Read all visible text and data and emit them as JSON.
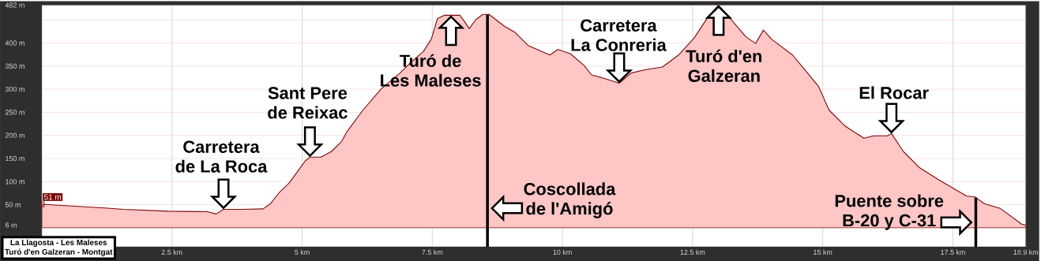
{
  "chart_data": {
    "type": "area",
    "title": "La Llagosta - Les Maleses",
    "subtitle": "Turó d'en Galzeran - Montgat",
    "x": [
      0,
      1.21,
      1.57,
      2.43,
      3.18,
      3.35,
      3.49,
      3.85,
      4.25,
      4.39,
      4.55,
      4.75,
      4.9,
      5.06,
      5.15,
      5.36,
      5.56,
      5.76,
      5.86,
      6.17,
      6.52,
      6.88,
      7.08,
      7.33,
      7.48,
      7.6,
      7.73,
      8.03,
      8.11,
      8.21,
      8.33,
      8.47,
      8.59,
      8.89,
      9.09,
      9.35,
      9.76,
      9.91,
      10.15,
      10.41,
      10.56,
      10.82,
      11.09,
      11.32,
      11.62,
      11.92,
      12.23,
      12.53,
      12.8,
      13.0,
      13.26,
      13.52,
      13.71,
      13.86,
      14.02,
      14.42,
      14.62,
      14.92,
      15.12,
      15.42,
      15.79,
      15.98,
      16.24,
      16.32,
      16.55,
      16.85,
      17.24,
      17.76,
      17.92,
      18.11,
      18.41,
      18.82,
      18.9
    ],
    "values": [
      51,
      43,
      40,
      36,
      35,
      30,
      40,
      40,
      41,
      52,
      75,
      97,
      120,
      145,
      153,
      153,
      165,
      187,
      208,
      255,
      301,
      335,
      357,
      382,
      408,
      453,
      460,
      460,
      448,
      431,
      450,
      462,
      462,
      436,
      423,
      394,
      374,
      386,
      377,
      352,
      331,
      323,
      313,
      335,
      343,
      348,
      374,
      411,
      457,
      482,
      448,
      414,
      399,
      428,
      408,
      374,
      347,
      306,
      255,
      221,
      194,
      199,
      199,
      204,
      165,
      131,
      103,
      69,
      67,
      52,
      42,
      8,
      6
    ],
    "color": "#7b0a0a",
    "xlim": [
      0,
      18.9
    ],
    "ylim": [
      -41,
      482
    ],
    "xticks": [
      {
        "value": 2.5,
        "label": "2.5 km"
      },
      {
        "value": 5,
        "label": "5 km"
      },
      {
        "value": 7.5,
        "label": "7.5 km"
      },
      {
        "value": 10,
        "label": "10 km"
      },
      {
        "value": 12.5,
        "label": "12.5 km"
      },
      {
        "value": 15,
        "label": "15 km"
      },
      {
        "value": 17.5,
        "label": "17.5 km"
      },
      {
        "value": 18.9,
        "label": "18.9 km"
      }
    ],
    "yticks": [
      {
        "value": 6,
        "label": "6 m"
      },
      {
        "value": 50,
        "label": "50 m"
      },
      {
        "value": 100,
        "label": "100 m"
      },
      {
        "value": 150,
        "label": "150 m"
      },
      {
        "value": 200,
        "label": "200 m"
      },
      {
        "value": 250,
        "label": "250 m"
      },
      {
        "value": 300,
        "label": "300 m"
      },
      {
        "value": 350,
        "label": "350 m"
      },
      {
        "value": 400,
        "label": "400 m"
      },
      {
        "value": 450,
        "label": null
      },
      {
        "value": 482,
        "label": "482 m"
      }
    ],
    "grid": true,
    "annotations": [
      {
        "text": "Carretera de La Roca",
        "x": 3.49,
        "y": 40
      },
      {
        "text": "Sant Pere de Reixac",
        "x": 5.15,
        "y": 153
      },
      {
        "text": "Turó de Les Maleses",
        "x": 7.86,
        "y": 460
      },
      {
        "text": "Carretera La Conreria",
        "x": 11.09,
        "y": 313
      },
      {
        "text": "Turó d'en Galzeran",
        "x": 13.0,
        "y": 482
      },
      {
        "text": "El Rocar",
        "x": 16.32,
        "y": 204
      },
      {
        "text": "51 m",
        "x": 0,
        "y": 51
      }
    ],
    "ref_lines": [
      {
        "axis": "x",
        "value": 8.56,
        "label": "Coscollada de l'Amigó",
        "color": "#000000"
      },
      {
        "axis": "x",
        "value": 17.94,
        "label": "Puente sobre B-20 y C-31",
        "color": "#000000"
      }
    ]
  }
}
